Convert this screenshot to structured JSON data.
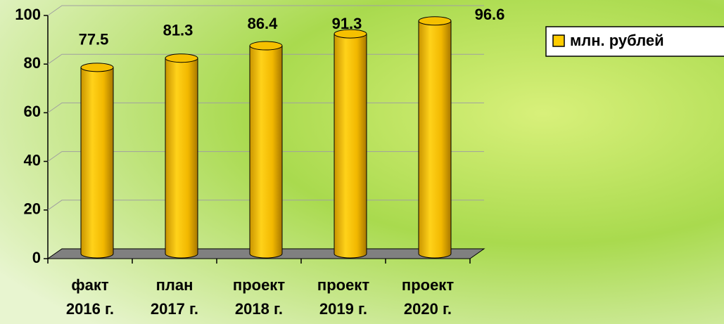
{
  "chart_data": {
    "type": "bar",
    "categories": [
      [
        "факт",
        "2016 г."
      ],
      [
        "план",
        "2017 г."
      ],
      [
        "проект",
        "2018 г."
      ],
      [
        "проект",
        "2019 г."
      ],
      [
        "проект",
        "2020 г."
      ]
    ],
    "series": [
      {
        "name": "млн. рублей",
        "color": "#ffcc00",
        "values": [
          77.5,
          81.3,
          86.4,
          91.3,
          96.6
        ]
      }
    ],
    "ylim": [
      0,
      100
    ],
    "yticks": [
      0,
      20,
      40,
      60,
      80,
      100
    ],
    "grid": true,
    "legend": "top-right"
  }
}
